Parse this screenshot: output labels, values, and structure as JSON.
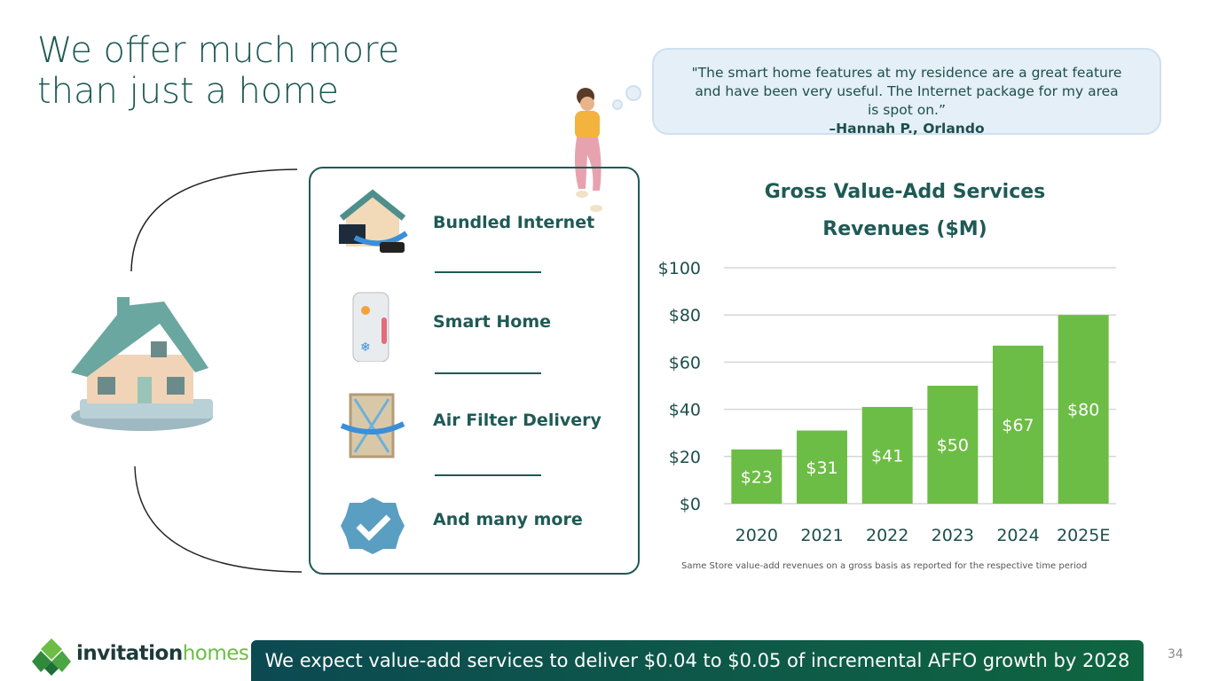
{
  "title": "We offer much more than just a home",
  "testimonial": {
    "quote": "\"The smart home features at my residence are a great feature and have been very useful. The Internet package for my area is spot on.”",
    "author": "–Hannah P., Orlando"
  },
  "services": [
    {
      "label": "Bundled Internet",
      "icon": "house-internet-icon"
    },
    {
      "label": "Smart Home",
      "icon": "smartphone-thermostat-icon"
    },
    {
      "label": "Air Filter Delivery",
      "icon": "air-filter-icon"
    },
    {
      "label": "And many more",
      "icon": "checkmark-badge-icon"
    }
  ],
  "chart_data": {
    "type": "bar",
    "title": "Gross Value-Add Services Revenues ($M)",
    "categories": [
      "2020",
      "2021",
      "2022",
      "2023",
      "2024",
      "2025E"
    ],
    "values": [
      23,
      31,
      41,
      50,
      67,
      80
    ],
    "data_labels": [
      "$23",
      "$31",
      "$41",
      "$50",
      "$67",
      "$80"
    ],
    "yticks": [
      "$0",
      "$20",
      "$40",
      "$60",
      "$80",
      "$100"
    ],
    "ylim": [
      0,
      100
    ],
    "grid": true,
    "bar_color": "#6cbd45",
    "footnote": "Same Store value-add revenues on a gross basis as reported for the respective time period"
  },
  "banner": "We expect value-add services to deliver $0.04 to $0.05 of incremental AFFO growth by 2028",
  "logo": {
    "brand": "invitation",
    "brand2": "homes"
  },
  "page_number": "34"
}
